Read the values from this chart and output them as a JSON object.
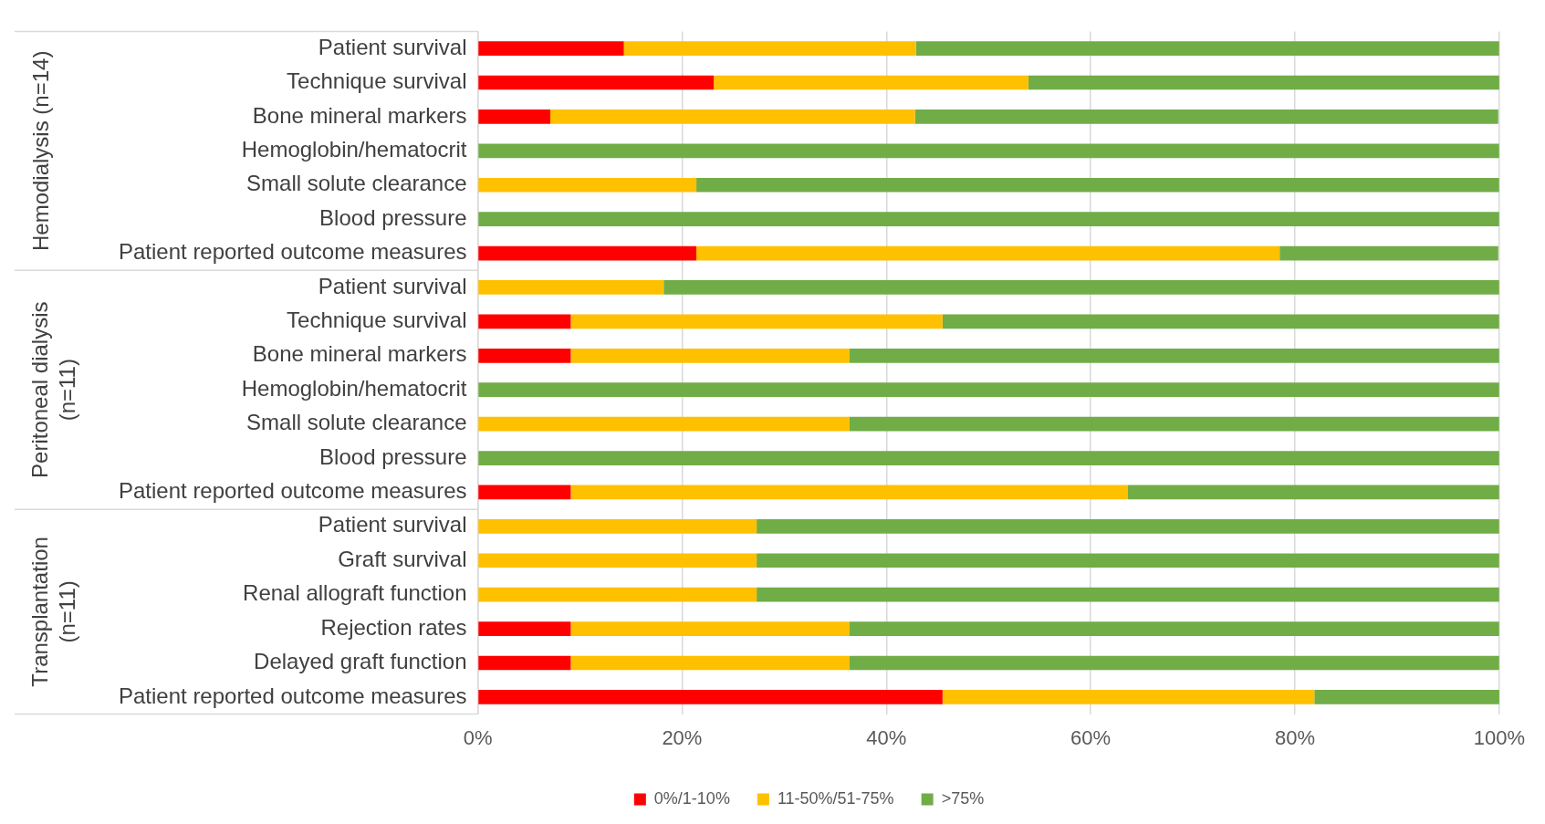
{
  "chart_data": {
    "type": "bar",
    "orientation": "horizontal",
    "stacked": true,
    "categories": [
      "Patient survival",
      "Technique survival",
      "Bone mineral markers",
      "Hemoglobin/hematocrit",
      "Small solute clearance",
      "Blood pressure",
      "Patient reported outcome measures",
      "Patient survival",
      "Technique survival",
      "Bone mineral markers",
      "Hemoglobin/hematocrit",
      "Small solute clearance",
      "Blood pressure",
      "Patient reported outcome measures",
      "Patient survival",
      "Graft survival",
      "Renal allograft function",
      "Rejection rates",
      "Delayed graft function",
      "Patient reported outcome measures"
    ],
    "series": [
      {
        "name": "0%/1-10%",
        "color": "#ff0000",
        "values": [
          14.3,
          23.1,
          7.1,
          0,
          0,
          0,
          21.4,
          0,
          9.1,
          9.1,
          0,
          0,
          0,
          9.1,
          0,
          0,
          0,
          9.1,
          9.1,
          45.5
        ]
      },
      {
        "name": "11-50%/51-75%",
        "color": "#ffc000",
        "values": [
          28.6,
          30.8,
          35.7,
          0,
          21.4,
          0,
          57.1,
          18.2,
          36.4,
          27.3,
          0,
          36.4,
          0,
          54.5,
          27.3,
          27.3,
          27.3,
          27.3,
          27.3,
          36.4
        ]
      },
      {
        "name": ">75%",
        "color": "#70ad47",
        "values": [
          57.1,
          46.2,
          57.1,
          100,
          78.6,
          100,
          21.4,
          81.8,
          54.5,
          63.6,
          100,
          63.6,
          100,
          36.4,
          72.7,
          72.7,
          72.7,
          63.6,
          63.6,
          18.2
        ]
      }
    ],
    "xlim": [
      0,
      100
    ],
    "xticks": [
      {
        "value": 0,
        "label": "0%"
      },
      {
        "value": 20,
        "label": "20%"
      },
      {
        "value": 40,
        "label": "40%"
      },
      {
        "value": 60,
        "label": "60%"
      },
      {
        "value": 80,
        "label": "80%"
      },
      {
        "value": 100,
        "label": "100%"
      }
    ],
    "annotations": [
      "Hemodialysis (n=14)",
      "Peritoneal dialysis (n=11)",
      "Transplantation (n=11)"
    ],
    "grid": "x",
    "legend": "bottom"
  }
}
